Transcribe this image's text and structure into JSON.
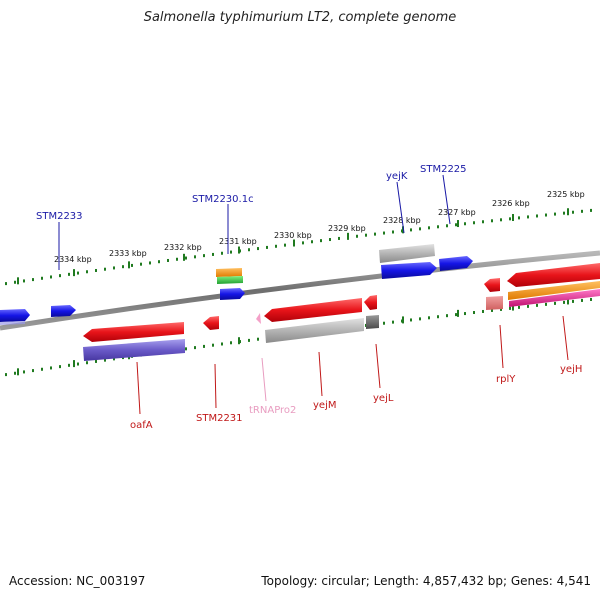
{
  "title": "Salmonella typhimurium LT2, complete genome",
  "footer": {
    "accession": "Accession: NC_003197",
    "topology": "Topology: circular; Length: 4,857,432 bp; Genes: 4,541"
  },
  "scale_labels": [
    "2334 kbp",
    "2333 kbp",
    "2332 kbp",
    "2331 kbp",
    "2330 kbp",
    "2329 kbp",
    "2328 kbp",
    "2327 kbp",
    "2326 kbp",
    "2325 kbp"
  ],
  "gene_labels": {
    "forward": [
      "STM2233",
      "STM2230.1c",
      "yejK",
      "STM2225"
    ],
    "reverse": [
      "oafA",
      "STM2231",
      "tRNAPro2",
      "yejM",
      "yejL",
      "rplY",
      "yejH"
    ]
  },
  "colors": {
    "forward_label": "#1a1aa6",
    "reverse_label": "#c01818",
    "trna_label": "#e89cc0",
    "tick": "#1f7a1f",
    "backbone": "#7a7a7a",
    "gene_red": "#e8141a",
    "gene_blue": "#1515e6",
    "gene_gray": "#a8a8a8",
    "gene_purple": "#6a5ac8",
    "gene_orange": "#f08a10",
    "gene_green": "#30c040",
    "gene_pink": "#e0208c"
  }
}
